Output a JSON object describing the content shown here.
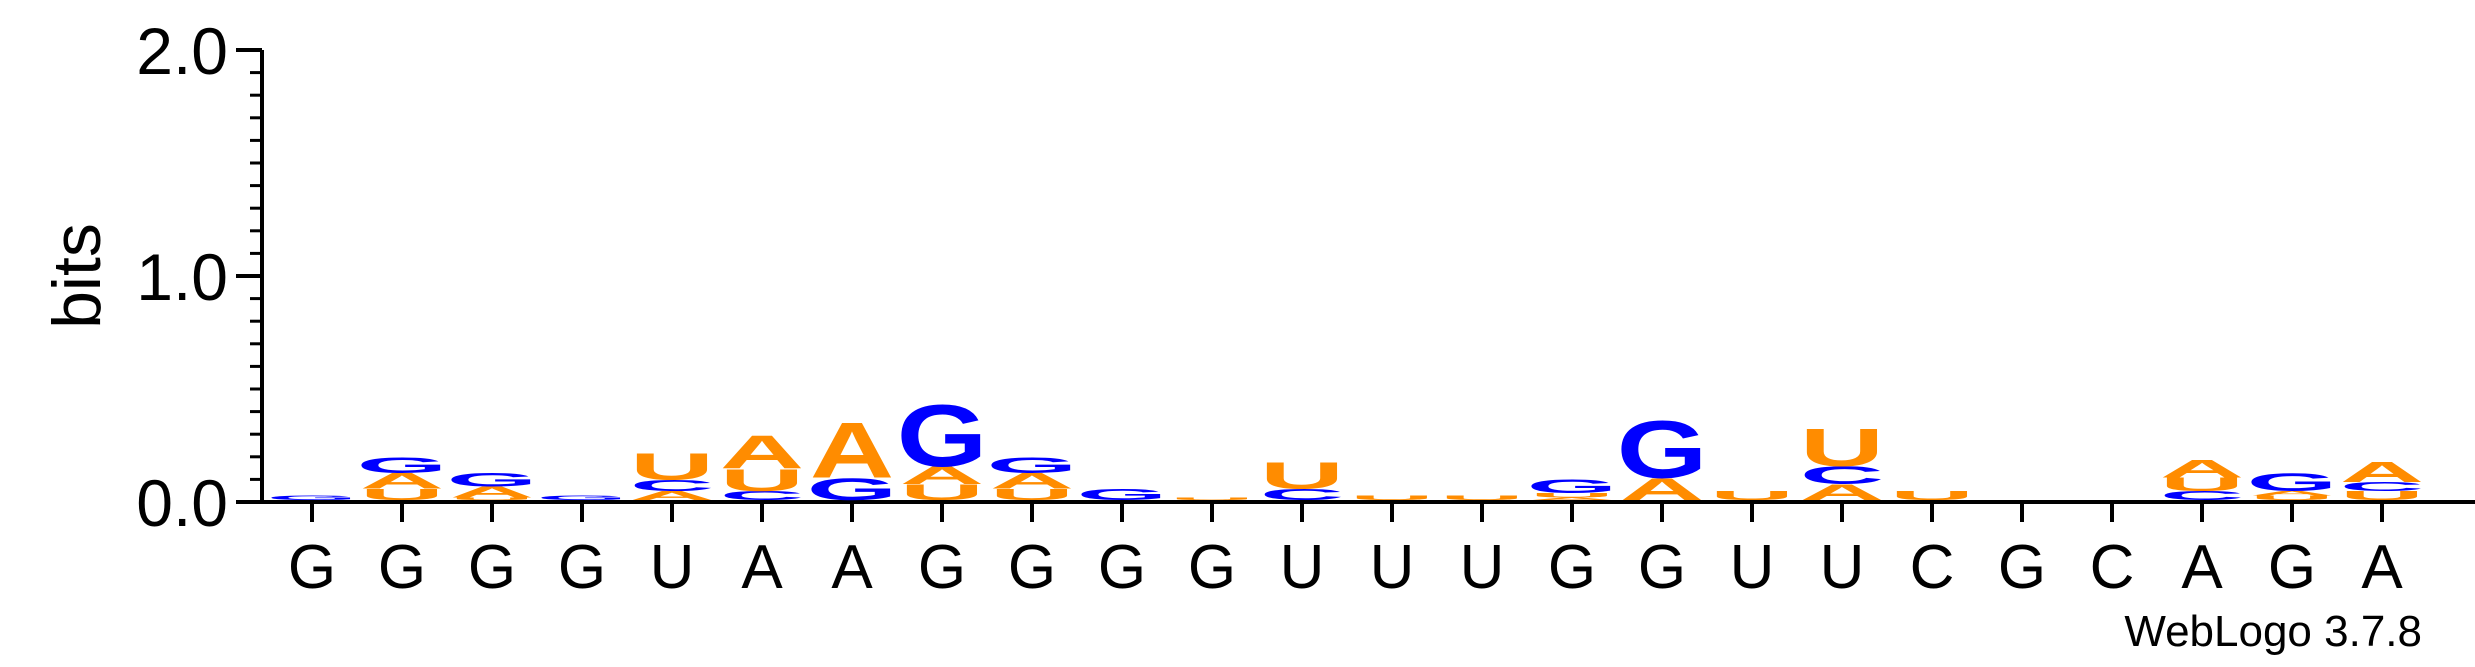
{
  "chart_data": {
    "type": "sequence-logo",
    "ylabel": "bits",
    "ylim": [
      0,
      2.0
    ],
    "yticks": [
      {
        "value": 0.0,
        "label": "0.0"
      },
      {
        "value": 1.0,
        "label": "1.0"
      },
      {
        "value": 2.0,
        "label": "2.0"
      }
    ],
    "xtick_labels": [
      "G",
      "G",
      "G",
      "G",
      "U",
      "A",
      "A",
      "G",
      "G",
      "G",
      "G",
      "U",
      "U",
      "U",
      "G",
      "G",
      "U",
      "U",
      "C",
      "G",
      "C",
      "A",
      "G",
      "A"
    ],
    "colors": {
      "A": "#ff8c00",
      "U": "#ff8c00",
      "G": "#0000ff",
      "C": "#0000ff"
    },
    "stacks": [
      [
        [
          "G",
          0.02
        ]
      ],
      [
        [
          "U",
          0.05
        ],
        [
          "A",
          0.07
        ],
        [
          "G",
          0.07
        ]
      ],
      [
        [
          "U",
          0.01
        ],
        [
          "A",
          0.05
        ],
        [
          "G",
          0.06
        ]
      ],
      [
        [
          "G",
          0.02
        ]
      ],
      [
        [
          "A",
          0.04
        ],
        [
          "C",
          0.05
        ],
        [
          "U",
          0.12
        ]
      ],
      [
        [
          "C",
          0.04
        ],
        [
          "U",
          0.1
        ],
        [
          "A",
          0.15
        ]
      ],
      [
        [
          "G",
          0.1
        ],
        [
          "A",
          0.25
        ]
      ],
      [
        [
          "U",
          0.07
        ],
        [
          "A",
          0.08
        ],
        [
          "G",
          0.28
        ]
      ],
      [
        [
          "U",
          0.05
        ],
        [
          "A",
          0.07
        ],
        [
          "G",
          0.07
        ]
      ],
      [
        [
          "G",
          0.05
        ]
      ],
      [
        [
          "U",
          0.01
        ]
      ],
      [
        [
          "C",
          0.05
        ],
        [
          "U",
          0.12
        ]
      ],
      [
        [
          "U",
          0.02
        ]
      ],
      [
        [
          "U",
          0.02
        ]
      ],
      [
        [
          "A",
          0.01
        ],
        [
          "U",
          0.02
        ],
        [
          "G",
          0.06
        ]
      ],
      [
        [
          "A",
          0.1
        ],
        [
          "G",
          0.26
        ]
      ],
      [
        [
          "U",
          0.04
        ]
      ],
      [
        [
          "A",
          0.07
        ],
        [
          "C",
          0.08
        ],
        [
          "U",
          0.17
        ]
      ],
      [
        [
          "U",
          0.04
        ]
      ],
      [],
      [],
      [
        [
          "C",
          0.04
        ],
        [
          "U",
          0.06
        ],
        [
          "A",
          0.08
        ]
      ],
      [
        [
          "U",
          0.02
        ],
        [
          "A",
          0.02
        ],
        [
          "G",
          0.08
        ]
      ],
      [
        [
          "U",
          0.04
        ],
        [
          "C",
          0.04
        ],
        [
          "A",
          0.09
        ]
      ]
    ]
  },
  "footer": {
    "credit": "WebLogo 3.7.8"
  }
}
